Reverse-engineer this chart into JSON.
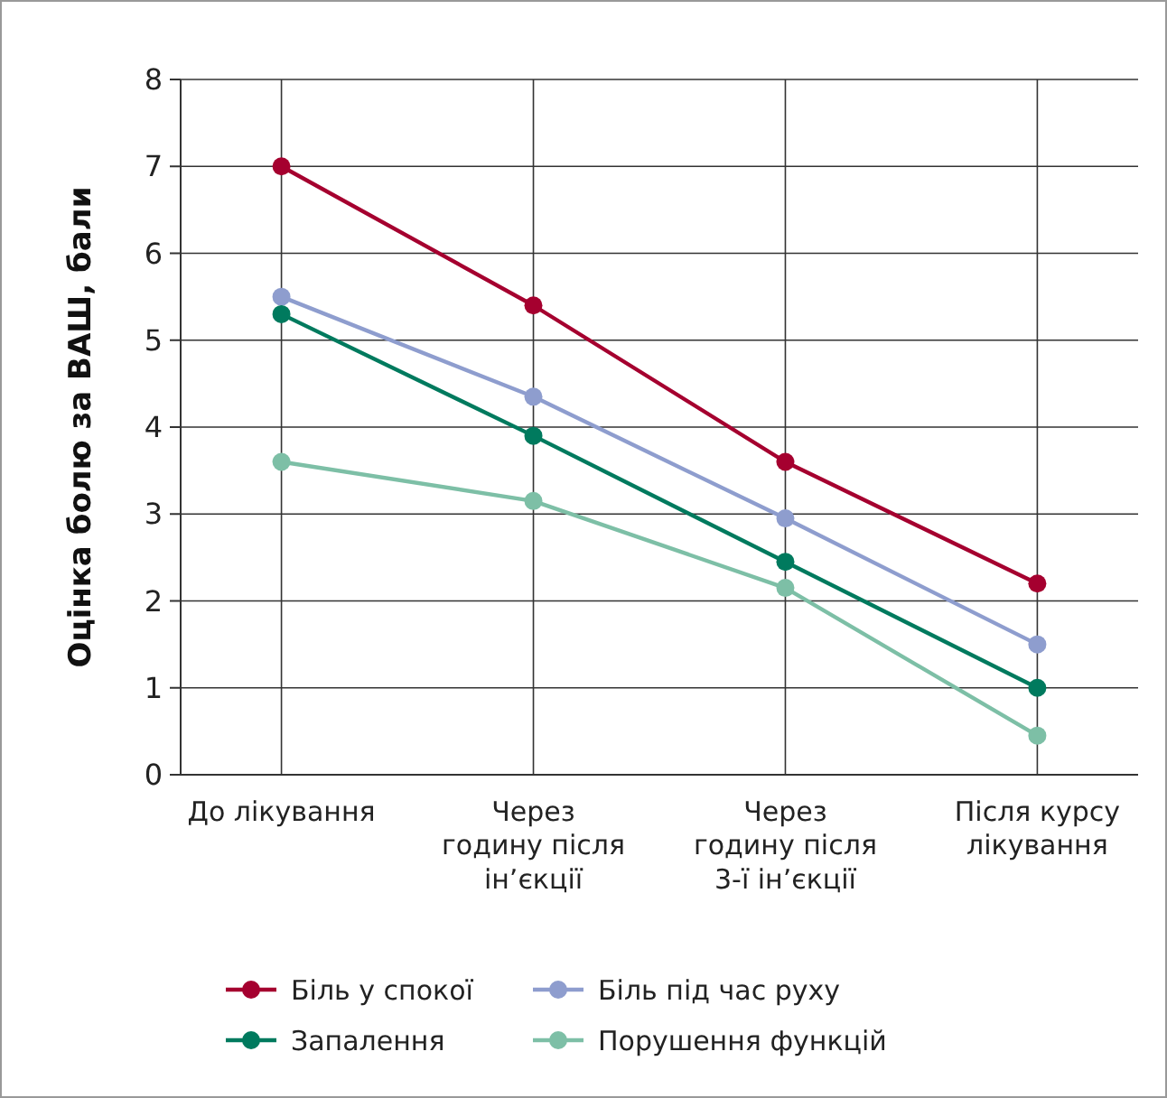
{
  "chart_data": {
    "type": "line",
    "ylabel": "Оцінка болю за ВАШ, бали",
    "categories": [
      "До лікування",
      "Через\nгодину після\nін’єкції",
      "Через\nгодину після\n3-ї ін’єкції",
      "Після курсу\nлікування"
    ],
    "series": [
      {
        "name": "Біль у спокої",
        "color": "#a5002f",
        "values": [
          7,
          5.4,
          3.6,
          2.2
        ]
      },
      {
        "name": "Біль під час руху",
        "color": "#8e9dce",
        "values": [
          5.5,
          4.35,
          2.95,
          1.5
        ]
      },
      {
        "name": "Запалення",
        "color": "#007a5e",
        "values": [
          5.3,
          3.9,
          2.45,
          1.0
        ]
      },
      {
        "name": "Порушення функцій",
        "color": "#7dbfa6",
        "values": [
          3.6,
          3.15,
          2.15,
          0.45
        ]
      }
    ],
    "ylim": [
      0,
      8
    ],
    "yticks": [
      0,
      1,
      2,
      3,
      4,
      5,
      6,
      7,
      8
    ],
    "grid": true,
    "legend": "bottom",
    "marker": "circle",
    "line_style": "solid"
  }
}
